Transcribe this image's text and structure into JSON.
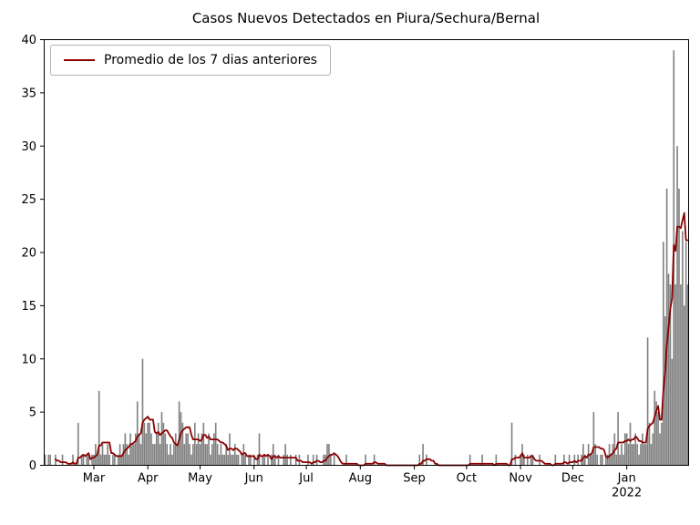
{
  "chart_data": {
    "type": "bar",
    "title": "Casos Nuevos Detectados en Piura/Sechura/Bernal",
    "x_unit": "day",
    "start_date": "2021-02-01",
    "bar_color": "#808080",
    "grid": false,
    "legend_position": "upper left",
    "ylim": [
      0,
      40
    ],
    "yticks": [
      0,
      5,
      10,
      15,
      20,
      25,
      30,
      35,
      40
    ],
    "xticks": [
      {
        "label": "Mar",
        "index": 28
      },
      {
        "label": "Apr",
        "index": 59
      },
      {
        "label": "May",
        "index": 89
      },
      {
        "label": "Jun",
        "index": 120
      },
      {
        "label": "Jul",
        "index": 150
      },
      {
        "label": "Aug",
        "index": 181
      },
      {
        "label": "Sep",
        "index": 212
      },
      {
        "label": "Oct",
        "index": 242
      },
      {
        "label": "Nov",
        "index": 273
      },
      {
        "label": "Dec",
        "index": 303
      },
      {
        "label": "Jan",
        "index": 334,
        "year_label": "2022"
      }
    ],
    "rolling_average": {
      "window": 7,
      "label": "Promedio de los 7 dias anteriores",
      "color": "#8b0000"
    },
    "values": [
      1,
      0,
      1,
      1,
      0,
      0,
      1,
      0,
      0,
      0,
      1,
      0,
      0,
      0,
      0,
      0,
      1,
      0,
      0,
      4,
      0,
      1,
      1,
      0,
      1,
      1,
      0,
      1,
      1,
      2,
      1,
      7,
      1,
      2,
      1,
      1,
      2,
      1,
      0,
      1,
      1,
      0,
      1,
      2,
      1,
      2,
      3,
      2,
      1,
      3,
      2,
      2,
      3,
      6,
      3,
      2,
      10,
      4,
      3,
      4,
      4,
      3,
      2,
      2,
      3,
      4,
      2,
      5,
      4,
      3,
      2,
      1,
      2,
      1,
      2,
      3,
      2,
      6,
      5,
      4,
      2,
      3,
      3,
      2,
      1,
      2,
      4,
      2,
      3,
      2,
      3,
      4,
      2,
      2,
      3,
      1,
      2,
      3,
      4,
      2,
      1,
      2,
      1,
      1,
      2,
      1,
      3,
      1,
      1,
      2,
      1,
      1,
      0,
      1,
      2,
      1,
      0,
      1,
      1,
      0,
      1,
      0,
      1,
      3,
      0,
      1,
      1,
      0,
      1,
      0,
      1,
      2,
      1,
      0,
      1,
      0,
      0,
      1,
      2,
      1,
      0,
      1,
      0,
      0,
      1,
      0,
      1,
      0,
      0,
      0,
      0,
      1,
      0,
      0,
      1,
      0,
      1,
      0,
      0,
      0,
      1,
      1,
      2,
      2,
      1,
      0,
      1,
      0,
      0,
      0,
      0,
      0,
      0,
      1,
      0,
      0,
      0,
      0,
      0,
      0,
      0,
      0,
      0,
      0,
      1,
      0,
      0,
      0,
      0,
      1,
      0,
      0,
      0,
      0,
      0,
      0,
      0,
      0,
      0,
      0,
      0,
      0,
      0,
      0,
      0,
      0,
      0,
      0,
      0,
      0,
      0,
      0,
      0,
      0,
      0,
      1,
      0,
      2,
      0,
      1,
      0,
      0,
      0,
      0,
      0,
      0,
      0,
      0,
      0,
      0,
      0,
      0,
      0,
      0,
      0,
      0,
      0,
      0,
      0,
      0,
      0,
      0,
      0,
      0,
      1,
      0,
      0,
      0,
      0,
      0,
      0,
      1,
      0,
      0,
      0,
      0,
      0,
      0,
      0,
      1,
      0,
      0,
      0,
      0,
      0,
      0,
      0,
      0,
      4,
      0,
      1,
      0,
      0,
      1,
      2,
      1,
      0,
      1,
      0,
      1,
      1,
      0,
      0,
      0,
      1,
      0,
      0,
      0,
      0,
      0,
      0,
      0,
      0,
      1,
      0,
      0,
      0,
      0,
      1,
      0,
      0,
      1,
      0,
      0,
      1,
      0,
      1,
      0,
      1,
      2,
      1,
      0,
      2,
      1,
      1,
      5,
      2,
      1,
      0,
      1,
      1,
      0,
      1,
      1,
      2,
      1,
      2,
      3,
      1,
      5,
      1,
      2,
      1,
      3,
      3,
      2,
      4,
      2,
      2,
      3,
      2,
      1,
      2,
      3,
      2,
      2,
      12,
      4,
      2,
      3,
      7,
      6,
      5,
      3,
      4,
      21,
      14,
      26,
      18,
      17,
      10,
      39,
      17,
      30,
      26,
      17,
      22,
      15,
      21,
      17
    ]
  }
}
